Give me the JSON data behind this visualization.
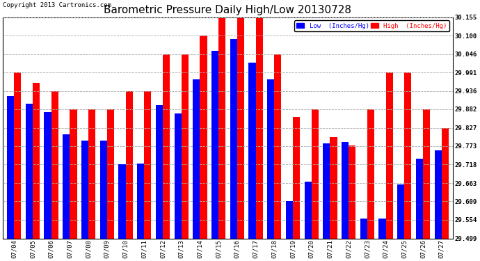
{
  "title": "Barometric Pressure Daily High/Low 20130728",
  "copyright": "Copyright 2013 Cartronics.com",
  "legend_low": "Low  (Inches/Hg)",
  "legend_high": "High  (Inches/Hg)",
  "dates": [
    "07/04",
    "07/05",
    "07/06",
    "07/07",
    "07/08",
    "07/09",
    "07/10",
    "07/11",
    "07/12",
    "07/13",
    "07/14",
    "07/15",
    "07/16",
    "07/17",
    "07/18",
    "07/19",
    "07/20",
    "07/21",
    "07/22",
    "07/23",
    "07/24",
    "07/25",
    "07/26",
    "07/27"
  ],
  "low_values": [
    29.921,
    29.899,
    29.873,
    29.807,
    29.79,
    29.79,
    29.718,
    29.722,
    29.895,
    29.87,
    29.97,
    30.055,
    30.09,
    30.02,
    29.97,
    29.61,
    29.668,
    29.78,
    29.785,
    29.557,
    29.557,
    29.66,
    29.735,
    29.76
  ],
  "high_values": [
    29.991,
    29.96,
    29.936,
    29.882,
    29.882,
    29.882,
    29.936,
    29.936,
    30.046,
    30.046,
    30.1,
    30.155,
    30.155,
    30.155,
    30.046,
    29.86,
    29.882,
    29.8,
    29.775,
    29.882,
    29.991,
    29.991,
    29.882,
    29.827
  ],
  "ylim_low": 29.499,
  "ylim_high": 30.155,
  "yticks": [
    29.499,
    29.554,
    29.609,
    29.663,
    29.718,
    29.773,
    29.827,
    29.882,
    29.936,
    29.991,
    30.046,
    30.1,
    30.155
  ],
  "bar_width": 0.38,
  "low_color": "#0000ff",
  "high_color": "#ff0000",
  "bg_color": "#ffffff",
  "grid_color": "#aaaaaa",
  "title_fontsize": 11,
  "tick_fontsize": 6.5,
  "copyright_fontsize": 6.5
}
